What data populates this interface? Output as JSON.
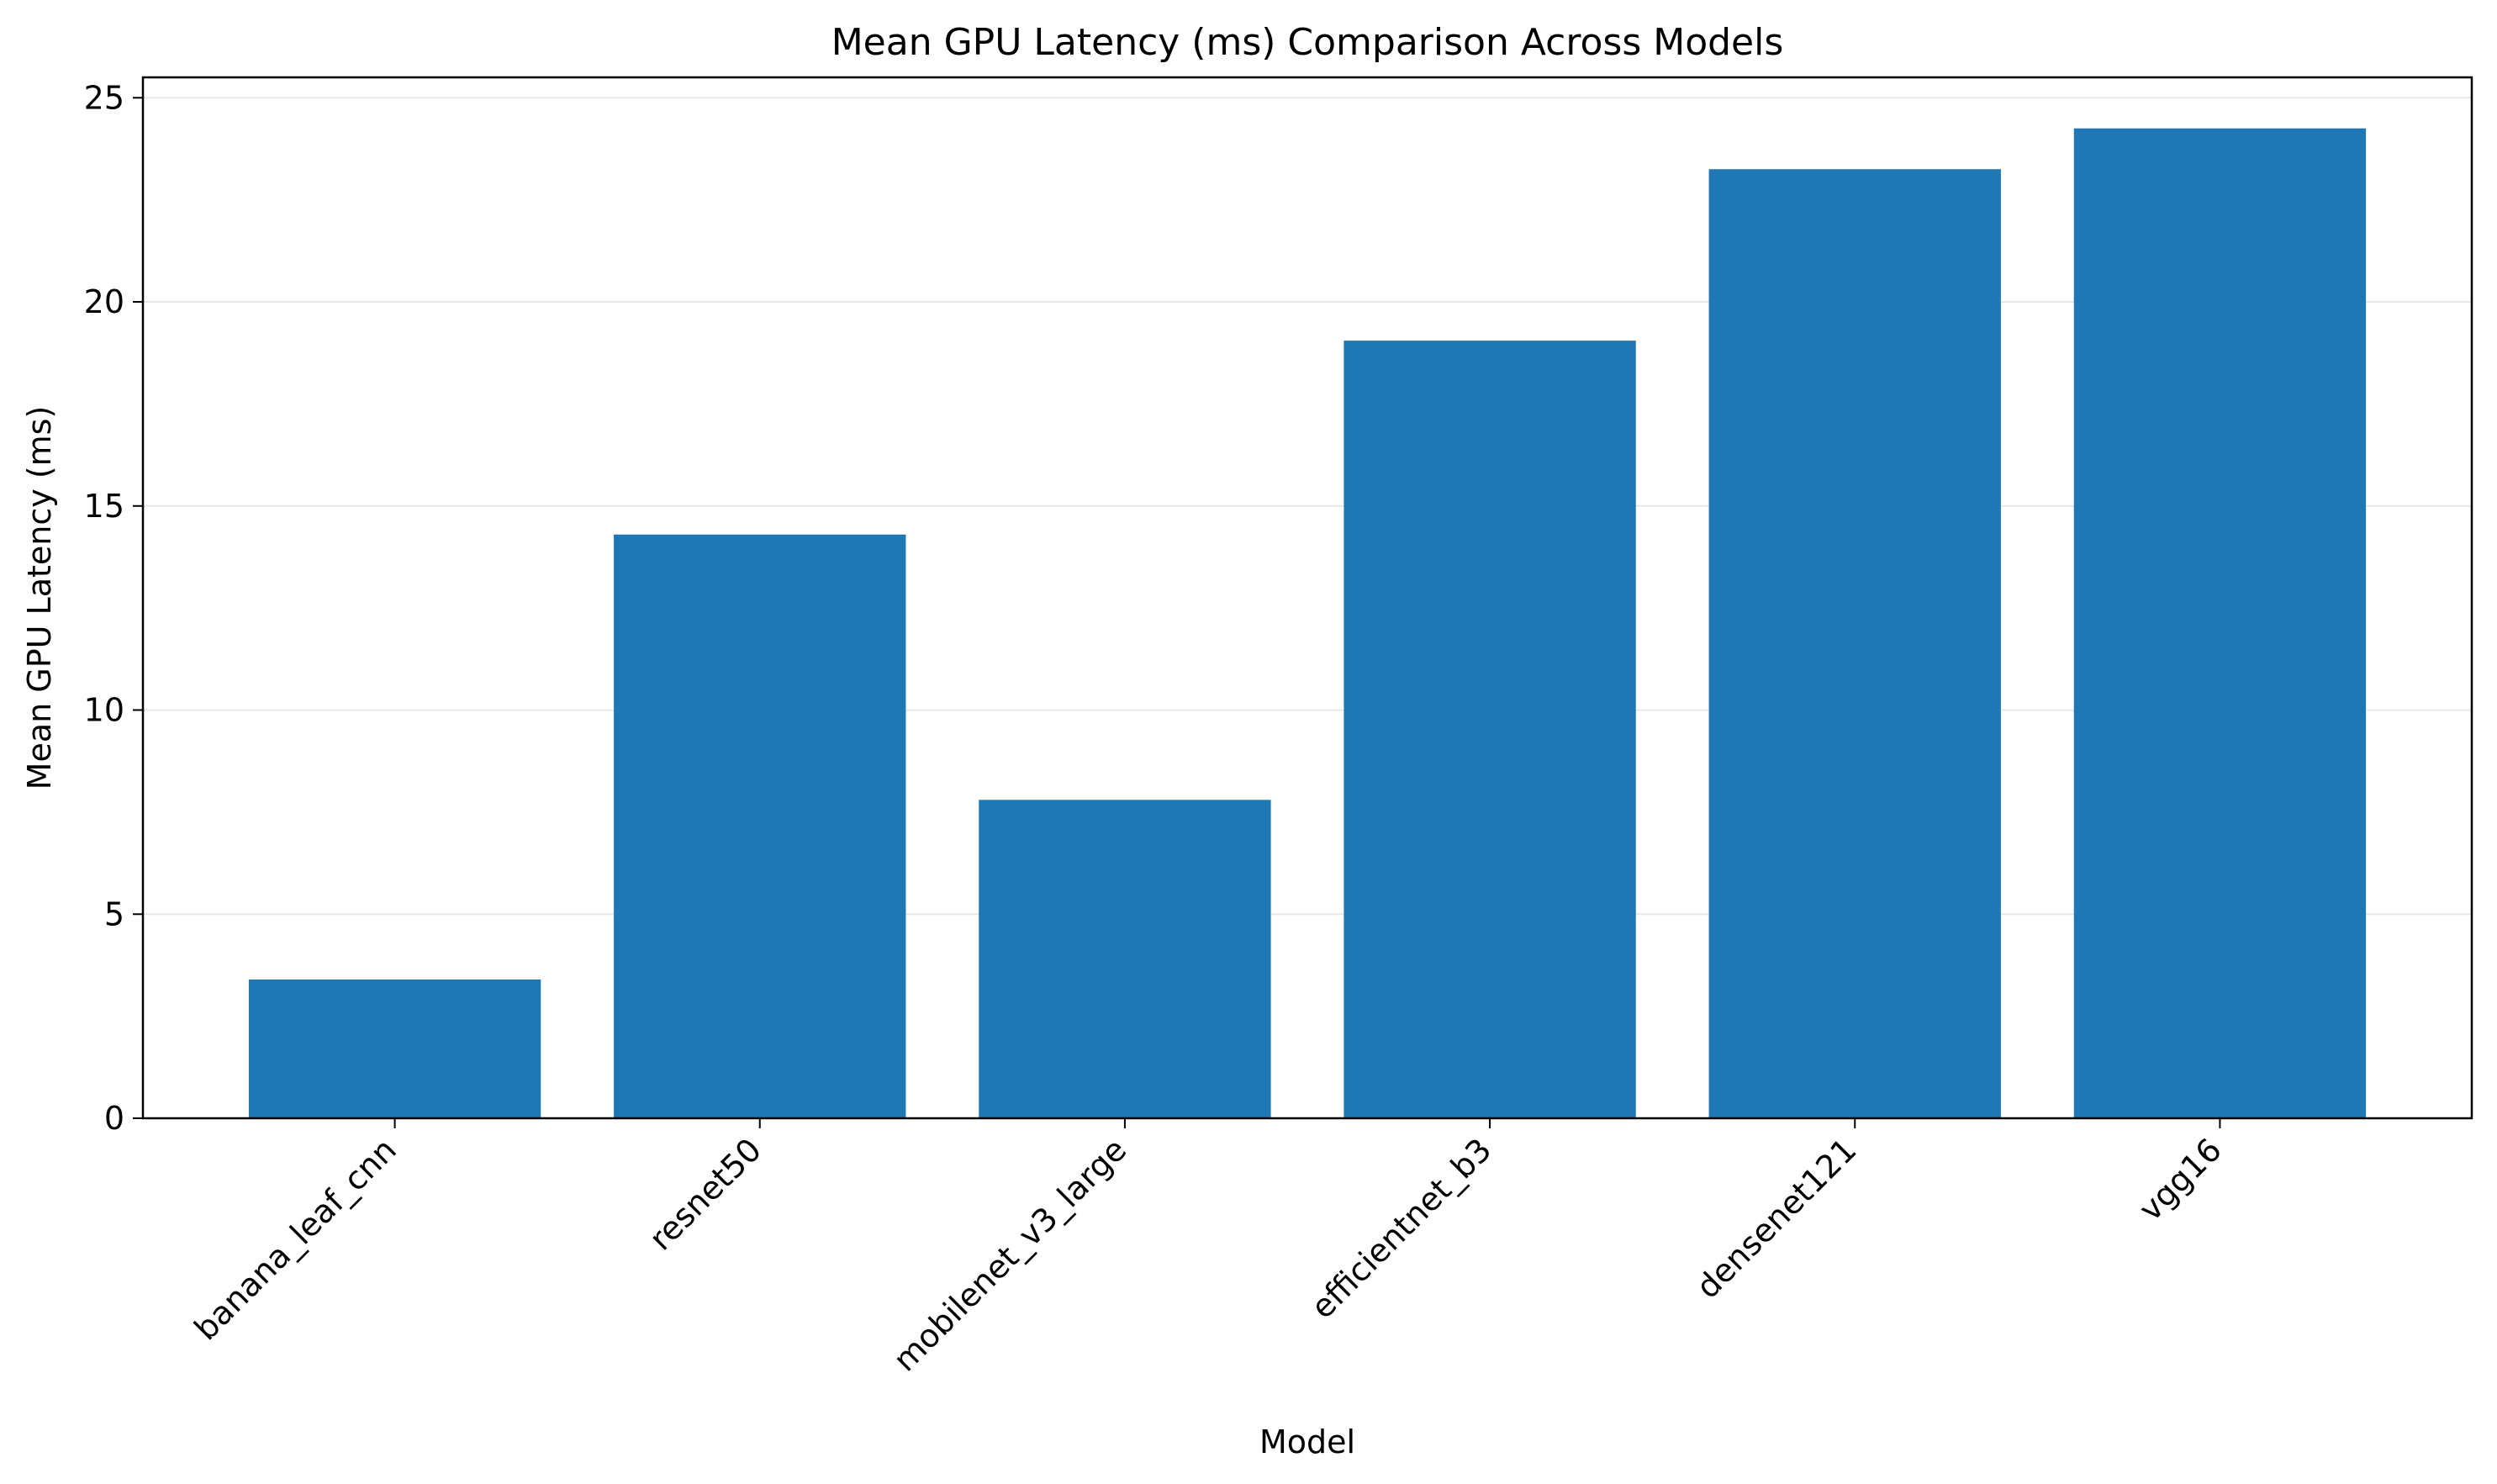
{
  "chart_data": {
    "type": "bar",
    "title": "Mean GPU Latency (ms) Comparison Across Models",
    "xlabel": "Model",
    "ylabel": "Mean GPU Latency (ms)",
    "categories": [
      "banana_leaf_cnn",
      "resnet50",
      "mobilenet_v3_large",
      "efficientnet_b3",
      "densenet121",
      "vgg16"
    ],
    "values": [
      3.4,
      14.3,
      7.8,
      19.05,
      23.25,
      24.25
    ],
    "ylim": [
      0,
      25.5
    ],
    "yticks": [
      0,
      5,
      10,
      15,
      20,
      25
    ],
    "grid": "y",
    "legend": "none",
    "bar_color": "#1f77b4"
  }
}
